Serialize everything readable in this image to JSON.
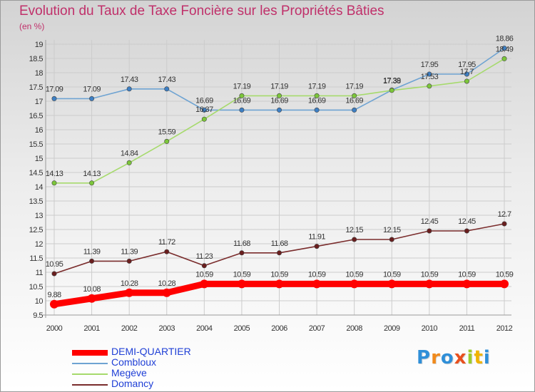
{
  "header": {
    "title": "Evolution du Taux de Taxe Foncière sur les Propriétés Bâties",
    "subtitle": "(en %)"
  },
  "logo": {
    "text": "Proxiti",
    "letter_colors": [
      "#2f8fd8",
      "#f08a1c",
      "#2f8fd8",
      "#e8501e",
      "#9bcc2c",
      "#f0b400",
      "#2f8fd8"
    ]
  },
  "colors": {
    "grid": "#cccccc",
    "axis": "#9a9a9a",
    "tick_text": "#333333",
    "label_text": "#333333"
  },
  "chart_data": {
    "type": "line",
    "title": "Evolution du Taux de Taxe Foncière sur les Propriétés Bâties",
    "ylabel": "(en %)",
    "xlabel": "",
    "ylim": [
      9.5,
      19
    ],
    "y_tick_step": 0.5,
    "grid": true,
    "legend_position": "bottom-left",
    "x": [
      "2000",
      "2001",
      "2002",
      "2003",
      "2004",
      "2005",
      "2006",
      "2007",
      "2008",
      "2009",
      "2010",
      "2011",
      "2012"
    ],
    "series": [
      {
        "name": "DEMI-QUARTIER",
        "color": "#ff0000",
        "legend_color": "#1f3fd6",
        "style": "thick",
        "values": [
          9.88,
          10.08,
          10.28,
          10.28,
          10.59,
          10.59,
          10.59,
          10.59,
          10.59,
          10.59,
          10.59,
          10.59,
          10.59
        ],
        "labels": [
          "9.88",
          "10.08",
          "10.28",
          "10.28",
          "10.59",
          "10.59",
          "10.59",
          "10.59",
          "10.59",
          "10.59",
          "10.59",
          "10.59",
          "10.59"
        ]
      },
      {
        "name": "Combloux",
        "color": "#6ea3d2",
        "marker_color": "#3d7fc4",
        "legend_color": "#1f3fd6",
        "style": "thin",
        "values": [
          17.09,
          17.09,
          17.43,
          17.43,
          16.69,
          16.69,
          16.69,
          16.69,
          16.69,
          17.39,
          17.95,
          17.95,
          18.86
        ],
        "labels": [
          "17.09",
          "17.09",
          "17.43",
          "17.43",
          "16.69",
          "16.69",
          "16.69",
          "16.69",
          "16.69",
          "17.39",
          "17.95",
          "17.95",
          "18.86"
        ]
      },
      {
        "name": "Megève",
        "color": "#a6da6c",
        "marker_color": "#7cc63a",
        "legend_color": "#1f3fd6",
        "style": "thin",
        "values": [
          14.13,
          14.13,
          14.84,
          15.59,
          16.37,
          17.19,
          17.19,
          17.19,
          17.19,
          17.38,
          17.53,
          17.7,
          18.49
        ],
        "labels": [
          "14.13",
          "14.13",
          "14.84",
          "15.59",
          "16.37",
          "17.19",
          "17.19",
          "17.19",
          "17.19",
          "17.38",
          "17.53",
          "17.7",
          "18.49"
        ]
      },
      {
        "name": "Domancy",
        "color": "#7a2c2c",
        "marker_color": "#6a1e1e",
        "legend_color": "#1f3fd6",
        "style": "thin",
        "values": [
          10.95,
          11.39,
          11.39,
          11.72,
          11.23,
          11.68,
          11.68,
          11.91,
          12.15,
          12.15,
          12.45,
          12.45,
          12.7
        ],
        "labels": [
          "10.95",
          "11.39",
          "11.39",
          "11.72",
          "11.23",
          "11.68",
          "11.68",
          "11.91",
          "12.15",
          "12.15",
          "12.45",
          "12.45",
          "12.7"
        ]
      }
    ]
  }
}
